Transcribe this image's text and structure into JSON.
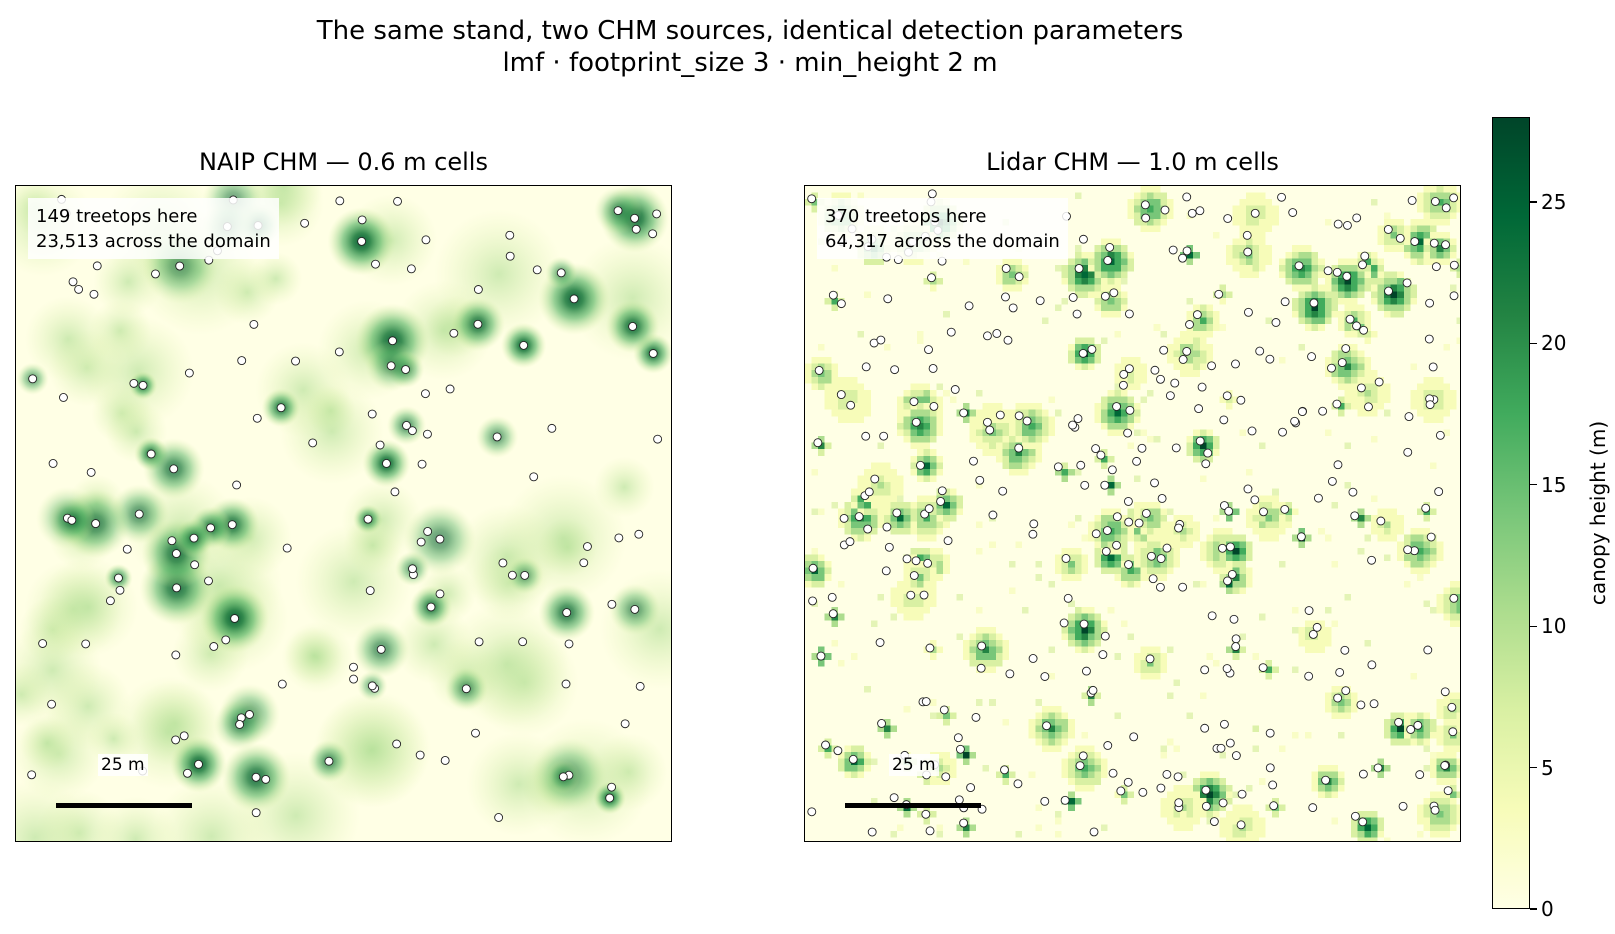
{
  "title": "The same stand, two CHM sources, identical detection parameters",
  "subtitle": "lmf · footprint_size 3 · min_height 2 m",
  "panels": [
    {
      "title": "NAIP CHM — 0.6 m cells",
      "info_line1": "149 treetops here",
      "info_line2": "23,513 across the domain",
      "scalebar_label": "25 m",
      "cell_size_m": 0.6,
      "treetop_count": 149,
      "domain_count": 23513
    },
    {
      "title": "Lidar CHM — 1.0 m cells",
      "info_line1": "370 treetops here",
      "info_line2": "64,317 across the domain",
      "scalebar_label": "25 m",
      "cell_size_m": 1.0,
      "treetop_count": 370,
      "domain_count": 64317
    }
  ],
  "colorbar": {
    "label": "canopy height (m)",
    "ticks": [
      "0",
      "5",
      "10",
      "15",
      "20",
      "25"
    ],
    "range": [
      0,
      28
    ],
    "colormap": "YlGn",
    "colors": [
      "#ffffe5",
      "#f7fcb9",
      "#d9f0a3",
      "#addd8e",
      "#78c679",
      "#41ab5d",
      "#238443",
      "#006837",
      "#004529"
    ]
  },
  "chart_data": {
    "type": "heatmap",
    "title": "The same stand, two CHM sources, identical detection parameters",
    "subtitle": "lmf · footprint_size 3 · min_height 2 m",
    "panels": [
      {
        "title": "NAIP CHM — 0.6 m cells",
        "treetops_shown": 149,
        "treetops_domain": 23513,
        "scalebar_m": 25
      },
      {
        "title": "Lidar CHM — 1.0 m cells",
        "treetops_shown": 370,
        "treetops_domain": 64317,
        "scalebar_m": 25
      }
    ],
    "colorbar": {
      "label": "canopy height (m)",
      "vmin": 0,
      "vmax": 28,
      "ticks": [
        0,
        5,
        10,
        15,
        20,
        25
      ]
    },
    "markers": "white circles with black edge = detected treetops"
  }
}
